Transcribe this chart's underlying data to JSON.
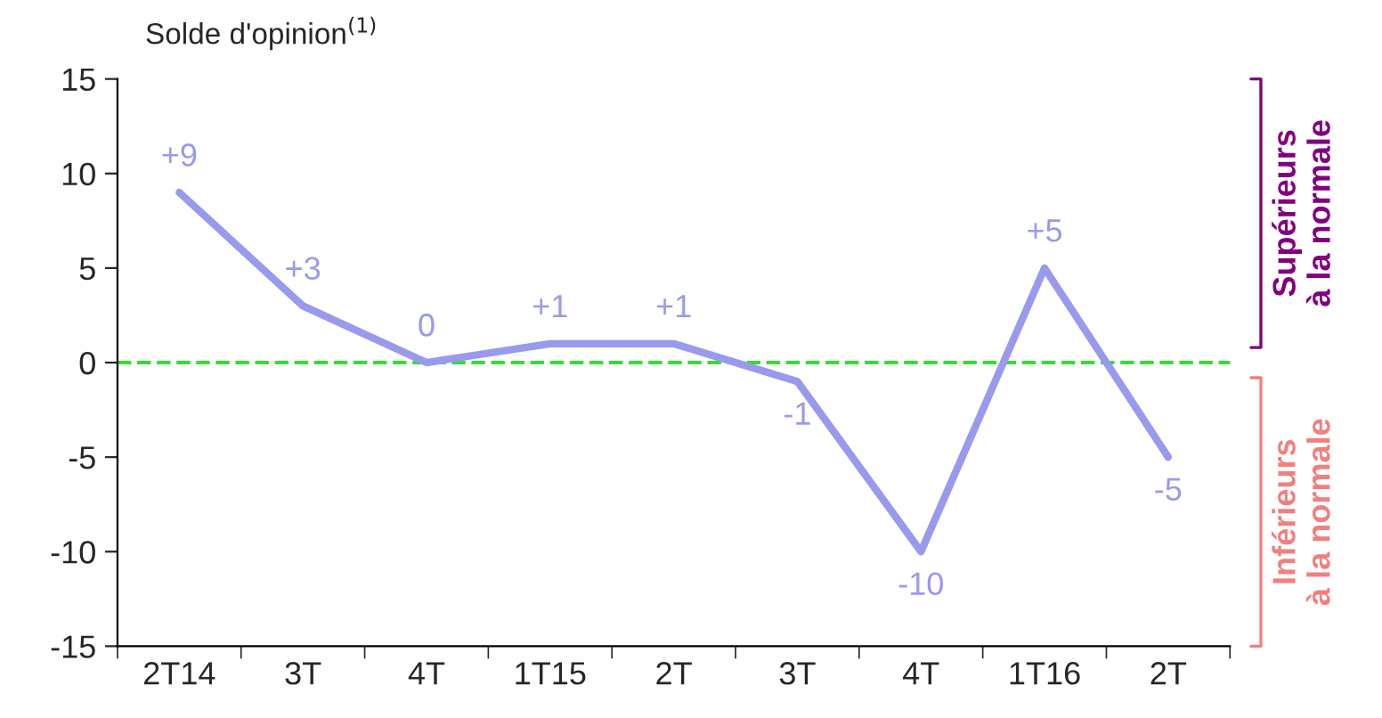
{
  "chart_data": {
    "type": "line",
    "title": "Solde d'opinion$^{(1)}$",
    "categories": [
      "2T14",
      "3T",
      "4T",
      "1T15",
      "2T",
      "3T",
      "4T",
      "1T16",
      "2T"
    ],
    "series": [
      {
        "color": "#9999ee",
        "values": [
          9,
          3,
          0,
          1,
          1,
          -1,
          -10,
          5,
          -5
        ],
        "value_labels": [
          "+9",
          "+3",
          "0",
          "+1",
          "+1",
          "-1",
          "-10",
          "+5",
          "-5"
        ]
      }
    ],
    "ylim": [
      -15,
      15
    ],
    "yticks": [
      -15,
      -10,
      -5,
      0,
      5,
      10,
      15
    ],
    "grid": false,
    "legend": false,
    "marker": "none",
    "line_style": "solid",
    "ref_lines": [
      {
        "axis": "y",
        "value": 0,
        "color": "#33dd33",
        "line_style": "dashed"
      }
    ],
    "annotations": [
      "Supérieurs à la normale",
      "Inférieurs à la normale"
    ]
  }
}
